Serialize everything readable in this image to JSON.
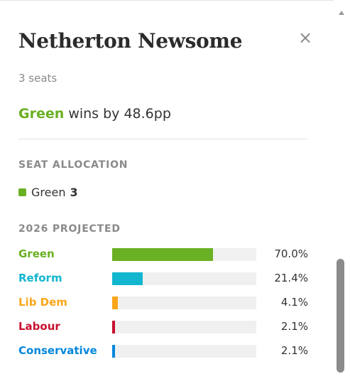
{
  "header": {
    "title": "Netherton Newsome",
    "close_symbol": "×"
  },
  "subtitle": "3 seats",
  "result": {
    "winner": "Green",
    "text": "wins by 48.6pp",
    "winner_color": "#6ab023"
  },
  "seat_allocation": {
    "heading": "SEAT ALLOCATION",
    "items": [
      {
        "party": "Green",
        "seats": "3",
        "color": "#6ab023"
      }
    ]
  },
  "projected": {
    "heading": "2026 PROJECTED",
    "rows": [
      {
        "party": "Green",
        "value": 70.0,
        "label": "70.0%",
        "color": "#6ab023"
      },
      {
        "party": "Reform",
        "value": 21.4,
        "label": "21.4%",
        "color": "#12b6cf"
      },
      {
        "party": "Lib Dem",
        "value": 4.1,
        "label": "4.1%",
        "color": "#faa61a"
      },
      {
        "party": "Labour",
        "value": 2.1,
        "label": "2.1%",
        "color": "#c8102e"
      },
      {
        "party": "Conservative",
        "value": 2.1,
        "label": "2.1%",
        "color": "#0087dc"
      }
    ]
  }
}
